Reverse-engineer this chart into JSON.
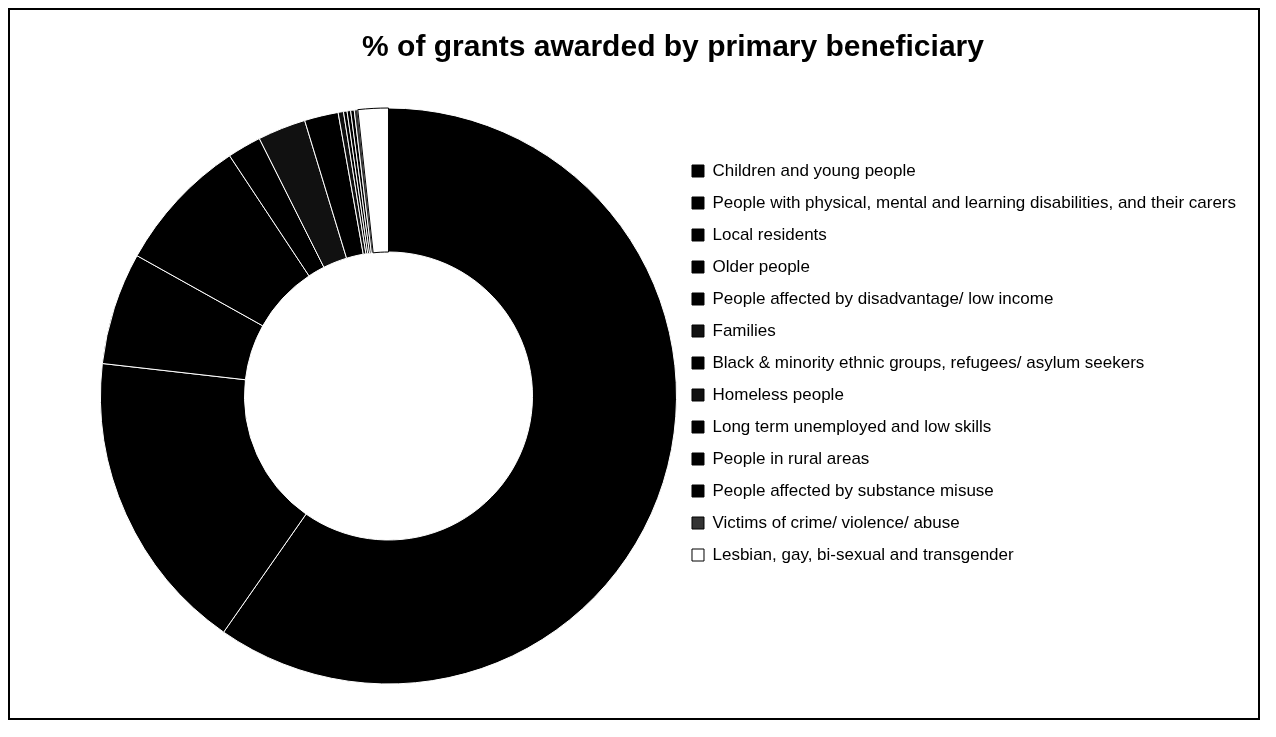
{
  "chart_data": {
    "type": "donut",
    "title": "% of grants awarded by primary beneficiary",
    "categories": [
      "Children and young people",
      "People with physical, mental and learning disabilities, and their carers",
      "Local residents",
      "Older people",
      "People affected by disadvantage/ low income",
      "Families",
      "Black & minority ethnic groups, refugees/ asylum seekers",
      "Homeless people",
      "Long term unemployed and low skills",
      "People in rural areas",
      "People affected by substance misuse",
      "Victims of crime/ violence/ abuse",
      "Lesbian, gay, bi-sexual and transgender"
    ],
    "values": [
      59.7,
      17.1,
      6.3,
      7.6,
      1.9,
      2.7,
      1.9,
      0.3,
      0.2,
      0.2,
      0.2,
      0.2,
      1.7
    ],
    "colors": [
      "#000000",
      "#000000",
      "#000000",
      "#000000",
      "#000000",
      "#111111",
      "#000000",
      "#111111",
      "#000000",
      "#000000",
      "#000000",
      "#333333",
      "#ffffff"
    ],
    "legend": "right"
  }
}
